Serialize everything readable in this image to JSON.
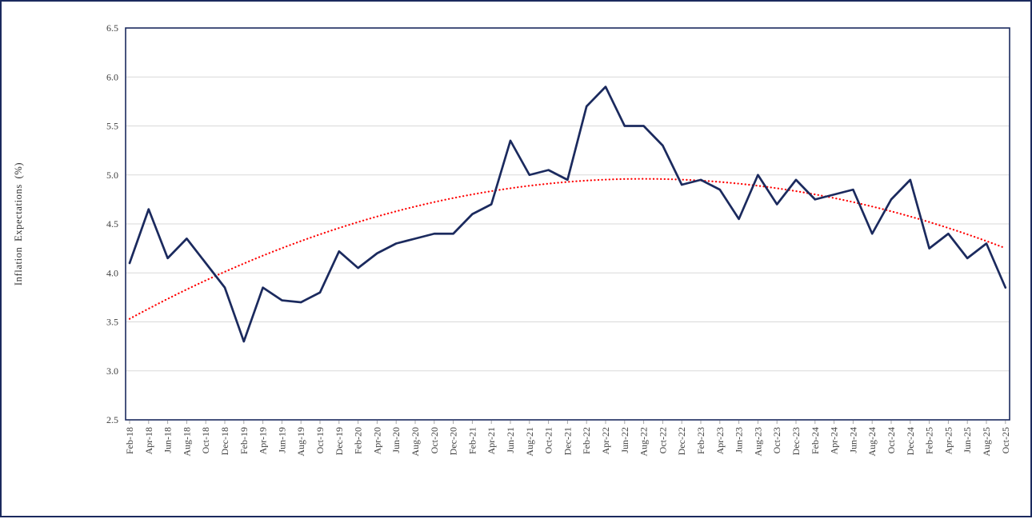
{
  "window": {
    "background": "#ffffff",
    "frame_border_color": "#1b2a5e"
  },
  "chart_data": {
    "type": "line",
    "title": "",
    "xlabel": "",
    "ylabel": "Inflation Expectations (%)",
    "ylim": [
      2.5,
      6.5
    ],
    "ytick_labels": [
      "2.5",
      "3.0",
      "3.5",
      "4.0",
      "4.5",
      "5.0",
      "5.5",
      "6.0",
      "6.5"
    ],
    "grid": true,
    "legend": "none",
    "categories": [
      "Feb-18",
      "Apr-18",
      "Jun-18",
      "Aug-18",
      "Oct-18",
      "Dec-18",
      "Feb-19",
      "Apr-19",
      "Jun-19",
      "Aug-19",
      "Oct-19",
      "Dec-19",
      "Feb-20",
      "Apr-20",
      "Jun-20",
      "Aug-20",
      "Oct-20",
      "Dec-20",
      "Feb-21",
      "Apr-21",
      "Jun-21",
      "Aug-21",
      "Oct-21",
      "Dec-21",
      "Feb-22",
      "Apr-22",
      "Jun-22",
      "Aug-22",
      "Oct-22",
      "Dec-22",
      "Feb-23",
      "Apr-23",
      "Jun-23",
      "Aug-23",
      "Oct-23",
      "Dec-23",
      "Feb-24",
      "Apr-24",
      "Jun-24",
      "Aug-24",
      "Oct-24",
      "Dec-24",
      "Feb-25",
      "Apr-25",
      "Jun-25",
      "Aug-25",
      "Oct-25"
    ],
    "series": [
      {
        "name": "Inflation Expectations (%)",
        "color": "#1b2a5e",
        "values": [
          4.1,
          4.65,
          4.15,
          4.35,
          4.1,
          3.85,
          3.3,
          3.85,
          3.72,
          3.7,
          3.8,
          4.22,
          4.05,
          4.2,
          4.3,
          4.35,
          4.4,
          4.4,
          4.6,
          4.7,
          5.35,
          5.0,
          5.05,
          4.95,
          5.7,
          5.9,
          5.5,
          5.5,
          5.3,
          4.9,
          4.95,
          4.85,
          4.55,
          5.0,
          4.7,
          4.95,
          4.75,
          4.8,
          4.85,
          4.4,
          4.75,
          4.95,
          4.25,
          4.4,
          4.15,
          4.3,
          3.85
        ]
      }
    ],
    "trendline": {
      "name": "Polynomial trend (order 2)",
      "style": "dotted",
      "color": "#ff0000",
      "a": -0.00196,
      "vertex_index": 27,
      "peak_value": 4.96,
      "start_value": 3.53,
      "end_value": 4.25
    },
    "colors": {
      "gridline": "#d9d9d9",
      "axis_border": "#1b2a5e",
      "tick_mark": "#a6a6a6",
      "label": "#404040"
    }
  }
}
